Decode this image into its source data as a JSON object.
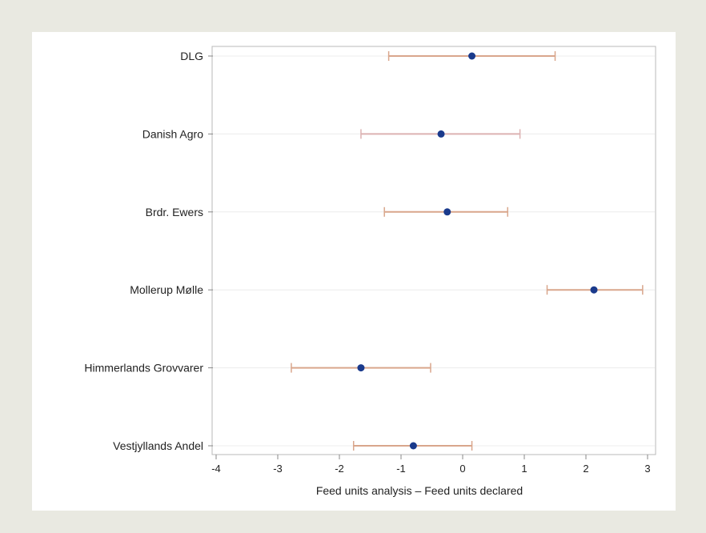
{
  "chart_data": {
    "type": "scatter",
    "variant": "forest-plot-with-error-bars",
    "title": "",
    "xlabel": "Feed units analysis – Feed units declared",
    "ylabel": "",
    "xlim": [
      -4,
      3
    ],
    "xticks": [
      "-4",
      "-3",
      "-2",
      "-1",
      "0",
      "1",
      "2",
      "3"
    ],
    "grid": "horizontal",
    "categories": [
      "DLG",
      "Danish Agro",
      "Brdr. Ewers",
      "Mollerup Mølle",
      "Himmerlands Grovvarer",
      "Vestjyllands Andel"
    ],
    "points": [
      {
        "category": "DLG",
        "estimate": 0.15,
        "lower": -1.2,
        "upper": 1.5
      },
      {
        "category": "Danish Agro",
        "estimate": -0.35,
        "lower": -1.65,
        "upper": 0.93
      },
      {
        "category": "Brdr. Ewers",
        "estimate": -0.25,
        "lower": -1.27,
        "upper": 0.73
      },
      {
        "category": "Mollerup Mølle",
        "estimate": 2.13,
        "lower": 1.37,
        "upper": 2.92
      },
      {
        "category": "Himmerlands Grovvarer",
        "estimate": -1.65,
        "lower": -2.78,
        "upper": -0.52
      },
      {
        "category": "Vestjyllands Andel",
        "estimate": -0.8,
        "lower": -1.77,
        "upper": 0.15
      }
    ],
    "colors": {
      "point": "#1a3a8c",
      "error_bar": "#d9a68c",
      "error_bar_light": "#dcb2b2",
      "grid": "#ececec",
      "axis": "#888888"
    }
  }
}
